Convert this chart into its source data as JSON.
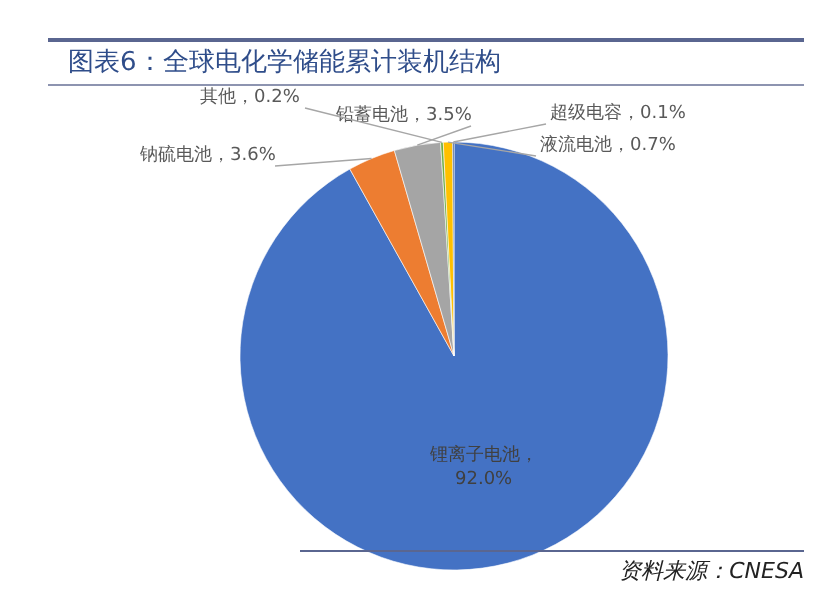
{
  "chart_data": {
    "type": "pie",
    "title": "图表6：全球电化学储能累计装机结构",
    "categories": [
      "锂离子电池",
      "钠硫电池",
      "铅蓄电池",
      "其他",
      "液流电池",
      "超级电容"
    ],
    "values": [
      92.0,
      3.6,
      3.5,
      0.2,
      0.7,
      0.1
    ],
    "colors": [
      "#4472c4",
      "#ed7d31",
      "#a5a5a5",
      "#70ad47",
      "#ffc000",
      "#264478"
    ],
    "value_labels": [
      "，92.0%",
      "，3.6%",
      "，3.5%",
      "，0.2%",
      "，0.7%",
      "，0.1%"
    ],
    "annotations": [
      "资料来源：CNESA"
    ],
    "legend": false
  }
}
